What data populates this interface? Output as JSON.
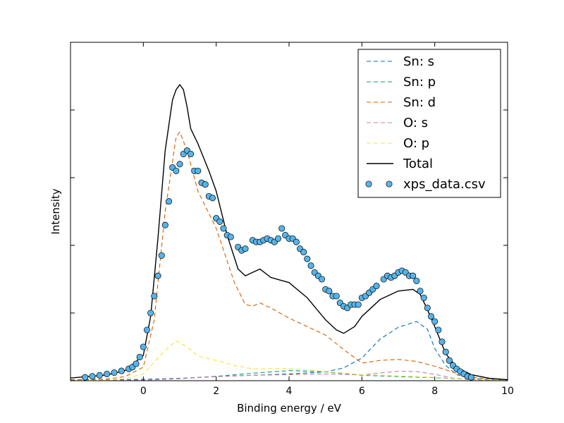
{
  "chart_data": {
    "type": "line",
    "title": "",
    "xlabel": "Binding energy / eV",
    "ylabel": "Intensity",
    "xlim": [
      -2,
      10
    ],
    "ylim": [
      0,
      1.0
    ],
    "xticks": [
      0,
      2,
      4,
      6,
      8,
      10
    ],
    "xtick_labels": [
      "0",
      "2",
      "4",
      "6",
      "8",
      "10"
    ],
    "ytick_values": [
      0.2,
      0.4,
      0.6,
      0.8
    ],
    "show_ytick_labels": false,
    "grid": false,
    "legend_position": "top-right",
    "series": [
      {
        "name": "Sn: s",
        "kind": "line",
        "style": "dashed",
        "color": "#0072b2",
        "x": [
          -2,
          -1,
          0,
          1,
          2,
          3,
          4,
          5,
          5.5,
          6,
          6.5,
          7,
          7.5,
          7.8,
          8,
          8.3,
          8.6,
          9,
          10
        ],
        "y": [
          0.003,
          0.003,
          0.004,
          0.007,
          0.012,
          0.016,
          0.02,
          0.026,
          0.038,
          0.067,
          0.123,
          0.158,
          0.175,
          0.152,
          0.095,
          0.045,
          0.018,
          0.006,
          0.002
        ]
      },
      {
        "name": "Sn: p",
        "kind": "line",
        "style": "dashed",
        "color": "#009e73",
        "x": [
          -2,
          -1,
          0,
          1,
          2,
          3,
          4,
          5,
          6,
          7,
          8,
          9,
          10
        ],
        "y": [
          0.001,
          0.001,
          0.002,
          0.006,
          0.013,
          0.022,
          0.03,
          0.026,
          0.016,
          0.012,
          0.009,
          0.004,
          0.001
        ]
      },
      {
        "name": "Sn: d",
        "kind": "line",
        "style": "dashed",
        "color": "#d55e00",
        "x": [
          -2,
          -1,
          -0.5,
          0,
          0.3,
          0.6,
          0.9,
          1.0,
          1.2,
          1.5,
          2.0,
          2.5,
          2.8,
          3.0,
          3.2,
          3.5,
          4.0,
          4.5,
          5.0,
          5.5,
          6.0,
          6.5,
          7.0,
          7.5,
          8.0,
          8.5,
          9.0,
          10
        ],
        "y": [
          0.002,
          0.005,
          0.012,
          0.04,
          0.18,
          0.5,
          0.72,
          0.735,
          0.68,
          0.56,
          0.45,
          0.29,
          0.225,
          0.22,
          0.23,
          0.215,
          0.185,
          0.16,
          0.135,
          0.092,
          0.052,
          0.06,
          0.063,
          0.057,
          0.043,
          0.025,
          0.01,
          0.002
        ]
      },
      {
        "name": "O: s",
        "kind": "line",
        "style": "dashed",
        "color": "#cc79a7",
        "x": [
          -2,
          -1,
          0,
          1,
          2,
          3,
          4,
          5,
          6,
          6.5,
          7,
          7.5,
          8,
          8.5,
          9,
          10
        ],
        "y": [
          0.0,
          0.001,
          0.002,
          0.006,
          0.012,
          0.016,
          0.018,
          0.02,
          0.017,
          0.023,
          0.028,
          0.027,
          0.019,
          0.008,
          0.003,
          0.001
        ]
      },
      {
        "name": "O: p",
        "kind": "line",
        "style": "dashed",
        "color": "#f0e442",
        "x": [
          -2,
          -1,
          -0.5,
          0,
          0.3,
          0.6,
          0.9,
          1.2,
          1.5,
          2.0,
          2.5,
          3.0,
          4.0,
          5.0,
          6.0,
          7.0,
          8.0,
          9.0,
          10
        ],
        "y": [
          0.0,
          0.002,
          0.006,
          0.02,
          0.055,
          0.09,
          0.118,
          0.1,
          0.073,
          0.06,
          0.045,
          0.035,
          0.036,
          0.027,
          0.018,
          0.014,
          0.01,
          0.005,
          0.001
        ]
      },
      {
        "name": "Total",
        "kind": "line",
        "style": "solid",
        "color": "#000000",
        "x": [
          -2,
          -1,
          -0.5,
          0,
          0.2,
          0.4,
          0.6,
          0.8,
          0.9,
          1.0,
          1.1,
          1.2,
          1.3,
          1.5,
          1.8,
          2.0,
          2.3,
          2.6,
          2.8,
          3.0,
          3.2,
          3.5,
          4.0,
          4.5,
          5.0,
          5.3,
          5.5,
          5.8,
          6.0,
          6.5,
          7.0,
          7.4,
          7.6,
          7.8,
          8.0,
          8.3,
          8.6,
          9.0,
          9.5,
          10
        ],
        "y": [
          0.008,
          0.017,
          0.03,
          0.075,
          0.19,
          0.42,
          0.68,
          0.83,
          0.86,
          0.875,
          0.86,
          0.81,
          0.745,
          0.7,
          0.62,
          0.56,
          0.43,
          0.33,
          0.31,
          0.32,
          0.33,
          0.305,
          0.29,
          0.245,
          0.18,
          0.15,
          0.14,
          0.16,
          0.19,
          0.24,
          0.265,
          0.27,
          0.255,
          0.21,
          0.16,
          0.08,
          0.04,
          0.018,
          0.007,
          0.003
        ]
      },
      {
        "name": "xps_data.csv",
        "kind": "scatter",
        "color": "#56b4e9",
        "x": [
          -1.6,
          -1.4,
          -1.2,
          -1.0,
          -0.8,
          -0.6,
          -0.4,
          -0.3,
          -0.2,
          -0.1,
          0.0,
          0.1,
          0.2,
          0.3,
          0.4,
          0.5,
          0.6,
          0.7,
          0.8,
          0.9,
          1.0,
          1.1,
          1.2,
          1.3,
          1.4,
          1.5,
          1.6,
          1.7,
          1.8,
          1.9,
          2.0,
          2.1,
          2.2,
          2.3,
          2.4,
          2.6,
          2.7,
          2.8,
          3.0,
          3.1,
          3.2,
          3.3,
          3.4,
          3.5,
          3.6,
          3.7,
          3.8,
          3.9,
          4.0,
          4.1,
          4.2,
          4.3,
          4.4,
          4.5,
          4.6,
          4.7,
          4.8,
          4.9,
          5.0,
          5.1,
          5.2,
          5.3,
          5.4,
          5.5,
          5.6,
          5.7,
          5.8,
          5.9,
          6.0,
          6.1,
          6.2,
          6.3,
          6.4,
          6.6,
          6.7,
          6.8,
          6.9,
          7.0,
          7.1,
          7.2,
          7.3,
          7.4,
          7.5,
          7.6,
          7.7,
          7.8,
          7.9,
          8.0,
          8.1,
          8.2,
          8.3,
          8.4,
          8.5,
          8.6,
          8.7,
          8.8,
          8.9,
          9.0
        ],
        "y": [
          0.01,
          0.013,
          0.016,
          0.02,
          0.024,
          0.029,
          0.035,
          0.04,
          0.05,
          0.07,
          0.1,
          0.15,
          0.2,
          0.25,
          0.31,
          0.37,
          0.46,
          0.53,
          0.63,
          0.62,
          0.64,
          0.67,
          0.68,
          0.67,
          0.62,
          0.62,
          0.585,
          0.58,
          0.545,
          0.54,
          0.48,
          0.47,
          0.45,
          0.43,
          0.425,
          0.395,
          0.385,
          0.39,
          0.415,
          0.41,
          0.41,
          0.415,
          0.42,
          0.415,
          0.41,
          0.42,
          0.45,
          0.43,
          0.42,
          0.42,
          0.41,
          0.39,
          0.38,
          0.36,
          0.34,
          0.32,
          0.31,
          0.3,
          0.27,
          0.265,
          0.25,
          0.25,
          0.23,
          0.22,
          0.215,
          0.225,
          0.225,
          0.225,
          0.245,
          0.25,
          0.26,
          0.27,
          0.28,
          0.3,
          0.31,
          0.305,
          0.31,
          0.32,
          0.325,
          0.32,
          0.31,
          0.31,
          0.295,
          0.265,
          0.245,
          0.215,
          0.19,
          0.175,
          0.15,
          0.115,
          0.085,
          0.06,
          0.045,
          0.035,
          0.027,
          0.02,
          0.013,
          0.01
        ]
      }
    ]
  }
}
